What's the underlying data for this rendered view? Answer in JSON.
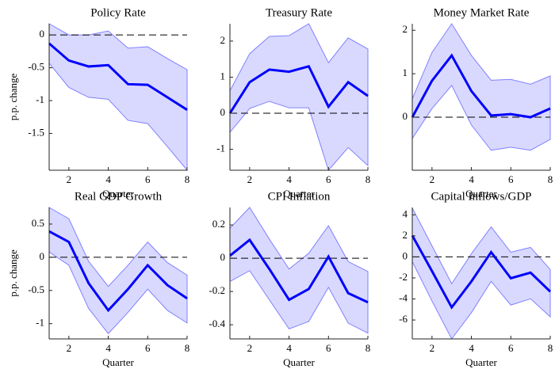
{
  "chart_data": [
    {
      "type": "band-line",
      "title": "Policy Rate",
      "ylabel": "p.p. change",
      "xlabel": "Quarter",
      "x": [
        1,
        2,
        3,
        4,
        5,
        6,
        7,
        8
      ],
      "values": [
        -0.13,
        -0.39,
        -0.48,
        -0.46,
        -0.75,
        -0.76,
        -0.95,
        -1.14
      ],
      "band_upper": [
        0.17,
        0,
        0,
        0.06,
        -0.2,
        -0.18,
        -0.36,
        -0.53
      ],
      "band_lower": [
        -0.43,
        -0.8,
        -0.95,
        -0.98,
        -1.3,
        -1.35,
        -1.7,
        -2.06
      ],
      "xlim": [
        1,
        8
      ],
      "xticks": [
        2,
        4,
        6,
        8
      ],
      "ylim": [
        -2.06,
        0.17
      ],
      "yticks": [
        0,
        -0.5,
        -1,
        -1.5
      ],
      "reference_line": 0,
      "color": "#0000ff",
      "band_color": "#d9d9ff",
      "band_edge": "#8080ff"
    },
    {
      "type": "band-line",
      "title": "Treasury Rate",
      "xlabel": "Quarter",
      "x": [
        1,
        2,
        3,
        4,
        5,
        6,
        7,
        8
      ],
      "values": [
        0,
        0.86,
        1.21,
        1.15,
        1.3,
        0.18,
        0.86,
        0.48
      ],
      "band_upper": [
        0.62,
        1.65,
        2.13,
        2.15,
        2.48,
        1.4,
        2.09,
        1.78
      ],
      "band_lower": [
        -0.53,
        0.13,
        0.33,
        0.15,
        0.15,
        -1.58,
        -0.95,
        -1.45
      ],
      "xlim": [
        1,
        8
      ],
      "xticks": [
        2,
        4,
        6,
        8
      ],
      "ylim": [
        -1.58,
        2.48
      ],
      "yticks": [
        2,
        1,
        0,
        -1
      ],
      "reference_line": 0,
      "color": "#0000ff",
      "band_color": "#d9d9ff",
      "band_edge": "#8080ff"
    },
    {
      "type": "band-line",
      "title": "Money Market Rate",
      "xlabel": "Quarter",
      "x": [
        1,
        2,
        3,
        4,
        5,
        6,
        7,
        8
      ],
      "values": [
        0,
        0.84,
        1.42,
        0.6,
        0.04,
        0.07,
        0,
        0.2
      ],
      "band_upper": [
        0.42,
        1.49,
        2.15,
        1.42,
        0.85,
        0.87,
        0.76,
        0.95
      ],
      "band_lower": [
        -0.49,
        0.2,
        0.73,
        -0.18,
        -0.76,
        -0.69,
        -0.76,
        -0.51
      ],
      "xlim": [
        1,
        8
      ],
      "xticks": [
        2,
        4,
        6,
        8
      ],
      "ylim": [
        -1.22,
        2.15
      ],
      "yticks": [
        2,
        1,
        0
      ],
      "reference_line": 0,
      "color": "#0000ff",
      "band_color": "#d9d9ff",
      "band_edge": "#8080ff"
    },
    {
      "type": "band-line",
      "title": "Real GDP Growth",
      "ylabel": "p.p. change",
      "xlabel": "Quarter",
      "x": [
        1,
        2,
        3,
        4,
        5,
        6,
        7,
        8
      ],
      "values": [
        0.39,
        0.23,
        -0.39,
        -0.8,
        -0.48,
        -0.12,
        -0.42,
        -0.62
      ],
      "band_upper": [
        0.75,
        0.58,
        -0.06,
        -0.44,
        -0.12,
        0.23,
        -0.08,
        -0.27
      ],
      "band_lower": [
        0.08,
        -0.12,
        -0.77,
        -1.15,
        -0.83,
        -0.48,
        -0.8,
        -0.99
      ],
      "xlim": [
        1,
        8
      ],
      "xticks": [
        2,
        4,
        6,
        8
      ],
      "ylim": [
        -1.23,
        0.75
      ],
      "yticks": [
        0.5,
        0,
        -0.5,
        -1
      ],
      "reference_line": 0,
      "color": "#0000ff",
      "band_color": "#d9d9ff",
      "band_edge": "#8080ff"
    },
    {
      "type": "band-line",
      "title": "CPI Inflation",
      "xlabel": "Quarter",
      "x": [
        1,
        2,
        3,
        4,
        5,
        6,
        7,
        8
      ],
      "values": [
        0.015,
        0.11,
        -0.065,
        -0.25,
        -0.185,
        0.01,
        -0.21,
        -0.265
      ],
      "band_upper": [
        0.18,
        0.305,
        0.115,
        -0.065,
        0.03,
        0.195,
        -0.02,
        -0.08
      ],
      "band_lower": [
        -0.14,
        -0.075,
        -0.25,
        -0.425,
        -0.38,
        -0.175,
        -0.39,
        -0.45
      ],
      "xlim": [
        1,
        8
      ],
      "xticks": [
        2,
        4,
        6,
        8
      ],
      "ylim": [
        -0.485,
        0.305
      ],
      "yticks": [
        0.2,
        0,
        -0.2,
        -0.4
      ],
      "reference_line": 0,
      "color": "#0000ff",
      "band_color": "#d9d9ff",
      "band_edge": "#8080ff"
    },
    {
      "type": "band-line",
      "title": "Capital Inflows/GDP",
      "xlabel": "Quarter",
      "x": [
        1,
        2,
        3,
        4,
        5,
        6,
        7,
        8
      ],
      "values": [
        2.03,
        -1.35,
        -4.8,
        -2.33,
        0.45,
        -2.03,
        -1.5,
        -3.3
      ],
      "band_upper": [
        4.65,
        1.05,
        -2.55,
        0.3,
        2.85,
        0.45,
        0.9,
        -1.2
      ],
      "band_lower": [
        -0.45,
        -4.2,
        -7.8,
        -5.3,
        -2.33,
        -4.58,
        -3.98,
        -5.7
      ],
      "xlim": [
        1,
        8
      ],
      "xticks": [
        2,
        4,
        6,
        8
      ],
      "ylim": [
        -7.8,
        4.7
      ],
      "yticks": [
        4,
        2,
        0,
        -2,
        -4,
        -6
      ],
      "reference_line": 0,
      "color": "#0000ff",
      "band_color": "#d9d9ff",
      "band_edge": "#8080ff"
    }
  ]
}
